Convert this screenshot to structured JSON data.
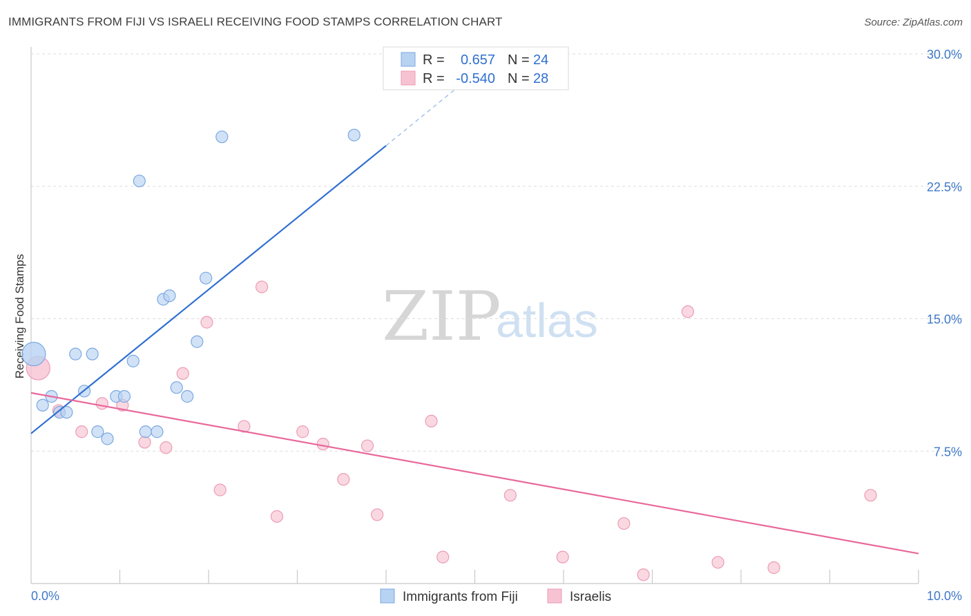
{
  "title": "IMMIGRANTS FROM FIJI VS ISRAELI RECEIVING FOOD STAMPS CORRELATION CHART",
  "source": "Source: ZipAtlas.com",
  "watermark": {
    "zip": "ZIP",
    "atlas": "atlas"
  },
  "legend": {
    "r_label": "R =",
    "n_label": "N =",
    "rows": [
      {
        "r": "0.657",
        "n": "24"
      },
      {
        "r": "-0.540",
        "n": "28"
      }
    ]
  },
  "chart_data": {
    "type": "scatter",
    "title": "IMMIGRANTS FROM FIJI VS ISRAELI RECEIVING FOOD STAMPS CORRELATION CHART",
    "xlabel": "",
    "ylabel": "Receiving Food Stamps",
    "xlim": [
      0,
      10
    ],
    "ylim": [
      0,
      30
    ],
    "x_tick_labels": [
      "0.0%",
      "10.0%"
    ],
    "y_ticks": [
      7.5,
      15.0,
      22.5,
      30.0
    ],
    "y_tick_labels": [
      "7.5%",
      "15.0%",
      "22.5%",
      "30.0%"
    ],
    "grid": "horizontal dashed",
    "legend_position": "top-center",
    "colors": {
      "fiji_fill": "#b8d2f2",
      "fiji_stroke": "#7aa8e0",
      "fiji_line": "#2f6fd0",
      "israel_fill": "#f7c3d3",
      "israel_stroke": "#ec9bb5",
      "israel_line": "#e8689a"
    },
    "series": [
      {
        "name": "Immigrants from Fiji",
        "r": 0.657,
        "n": 24,
        "trend": {
          "x0": 0.0,
          "y0": 8.5,
          "x1": 4.0,
          "y1": 24.8,
          "dash_x1": 5.0,
          "dash_y1": 28.9
        },
        "points": [
          {
            "x": 0.03,
            "y": 13.0,
            "big": true
          },
          {
            "x": 0.13,
            "y": 10.1
          },
          {
            "x": 0.23,
            "y": 10.6
          },
          {
            "x": 0.32,
            "y": 9.7
          },
          {
            "x": 0.4,
            "y": 9.7
          },
          {
            "x": 0.5,
            "y": 13.0
          },
          {
            "x": 0.6,
            "y": 10.9
          },
          {
            "x": 0.69,
            "y": 13.0
          },
          {
            "x": 0.75,
            "y": 8.6
          },
          {
            "x": 0.86,
            "y": 8.2
          },
          {
            "x": 0.96,
            "y": 10.6
          },
          {
            "x": 1.05,
            "y": 10.6
          },
          {
            "x": 1.15,
            "y": 12.6
          },
          {
            "x": 1.22,
            "y": 22.8
          },
          {
            "x": 1.29,
            "y": 8.6
          },
          {
            "x": 1.42,
            "y": 8.6
          },
          {
            "x": 1.49,
            "y": 16.1
          },
          {
            "x": 1.56,
            "y": 16.3
          },
          {
            "x": 1.64,
            "y": 11.1
          },
          {
            "x": 1.76,
            "y": 10.6
          },
          {
            "x": 1.87,
            "y": 13.7
          },
          {
            "x": 1.97,
            "y": 17.3
          },
          {
            "x": 2.15,
            "y": 25.3
          },
          {
            "x": 3.64,
            "y": 25.4
          }
        ]
      },
      {
        "name": "Israelis",
        "r": -0.54,
        "n": 28,
        "trend": {
          "x0": 0.0,
          "y0": 10.8,
          "x1": 10.0,
          "y1": 1.7
        },
        "points": [
          {
            "x": 0.08,
            "y": 12.2,
            "big": true
          },
          {
            "x": 0.31,
            "y": 9.8
          },
          {
            "x": 0.57,
            "y": 8.6
          },
          {
            "x": 0.8,
            "y": 10.2
          },
          {
            "x": 1.03,
            "y": 10.1
          },
          {
            "x": 1.28,
            "y": 8.0
          },
          {
            "x": 1.52,
            "y": 7.7
          },
          {
            "x": 1.71,
            "y": 11.9
          },
          {
            "x": 1.98,
            "y": 14.8
          },
          {
            "x": 2.13,
            "y": 5.3
          },
          {
            "x": 2.4,
            "y": 8.9
          },
          {
            "x": 2.6,
            "y": 16.8
          },
          {
            "x": 2.77,
            "y": 3.8
          },
          {
            "x": 3.06,
            "y": 8.6
          },
          {
            "x": 3.29,
            "y": 7.9
          },
          {
            "x": 3.52,
            "y": 5.9
          },
          {
            "x": 3.79,
            "y": 7.8
          },
          {
            "x": 3.9,
            "y": 3.9
          },
          {
            "x": 4.51,
            "y": 9.2
          },
          {
            "x": 4.64,
            "y": 1.5
          },
          {
            "x": 5.4,
            "y": 5.0
          },
          {
            "x": 5.99,
            "y": 1.5
          },
          {
            "x": 6.68,
            "y": 3.4
          },
          {
            "x": 6.9,
            "y": 0.5
          },
          {
            "x": 7.4,
            "y": 15.4
          },
          {
            "x": 7.74,
            "y": 1.2
          },
          {
            "x": 8.37,
            "y": 0.9
          },
          {
            "x": 9.46,
            "y": 5.0
          }
        ]
      }
    ]
  }
}
